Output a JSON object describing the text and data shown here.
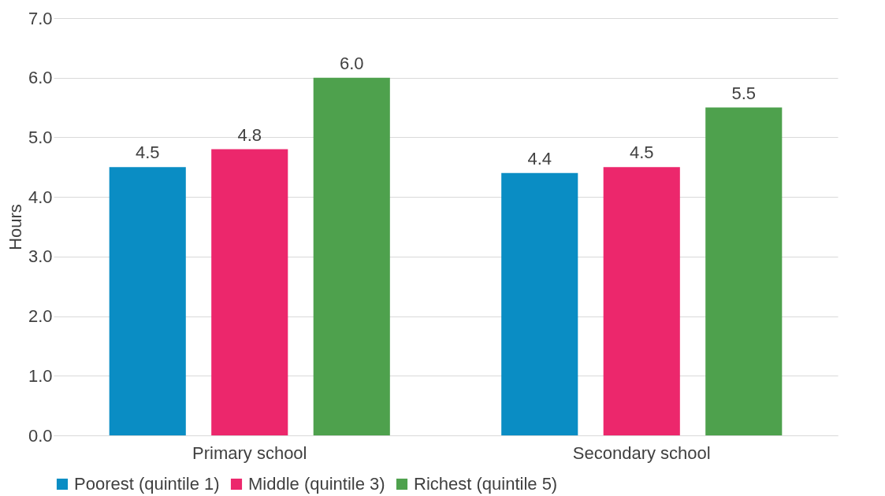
{
  "chart_data": {
    "type": "bar",
    "ylabel": "Hours",
    "categories": [
      "Primary school",
      "Secondary school"
    ],
    "series": [
      {
        "name": "Poorest (quintile 1)",
        "color": "#0a8dc4",
        "values": [
          4.5,
          4.4
        ],
        "value_labels": [
          "4.5",
          "4.4"
        ]
      },
      {
        "name": "Middle (quintile 3)",
        "color": "#ec276c",
        "values": [
          4.8,
          4.5
        ],
        "value_labels": [
          "4.8",
          "4.5"
        ]
      },
      {
        "name": "Richest (quintile 5)",
        "color": "#4ea14d",
        "values": [
          6.0,
          5.5
        ],
        "value_labels": [
          "6.0",
          "5.5"
        ]
      }
    ],
    "ylim": [
      0,
      7
    ],
    "yticks": [
      {
        "value": 0,
        "label": "0.0"
      },
      {
        "value": 1,
        "label": "1.0"
      },
      {
        "value": 2,
        "label": "2.0"
      },
      {
        "value": 3,
        "label": "3.0"
      },
      {
        "value": 4,
        "label": "4.0"
      },
      {
        "value": 5,
        "label": "5.0"
      },
      {
        "value": 6,
        "label": "6.0"
      },
      {
        "value": 7,
        "label": "7.0"
      }
    ],
    "grid": "y",
    "legend": "bottom"
  }
}
